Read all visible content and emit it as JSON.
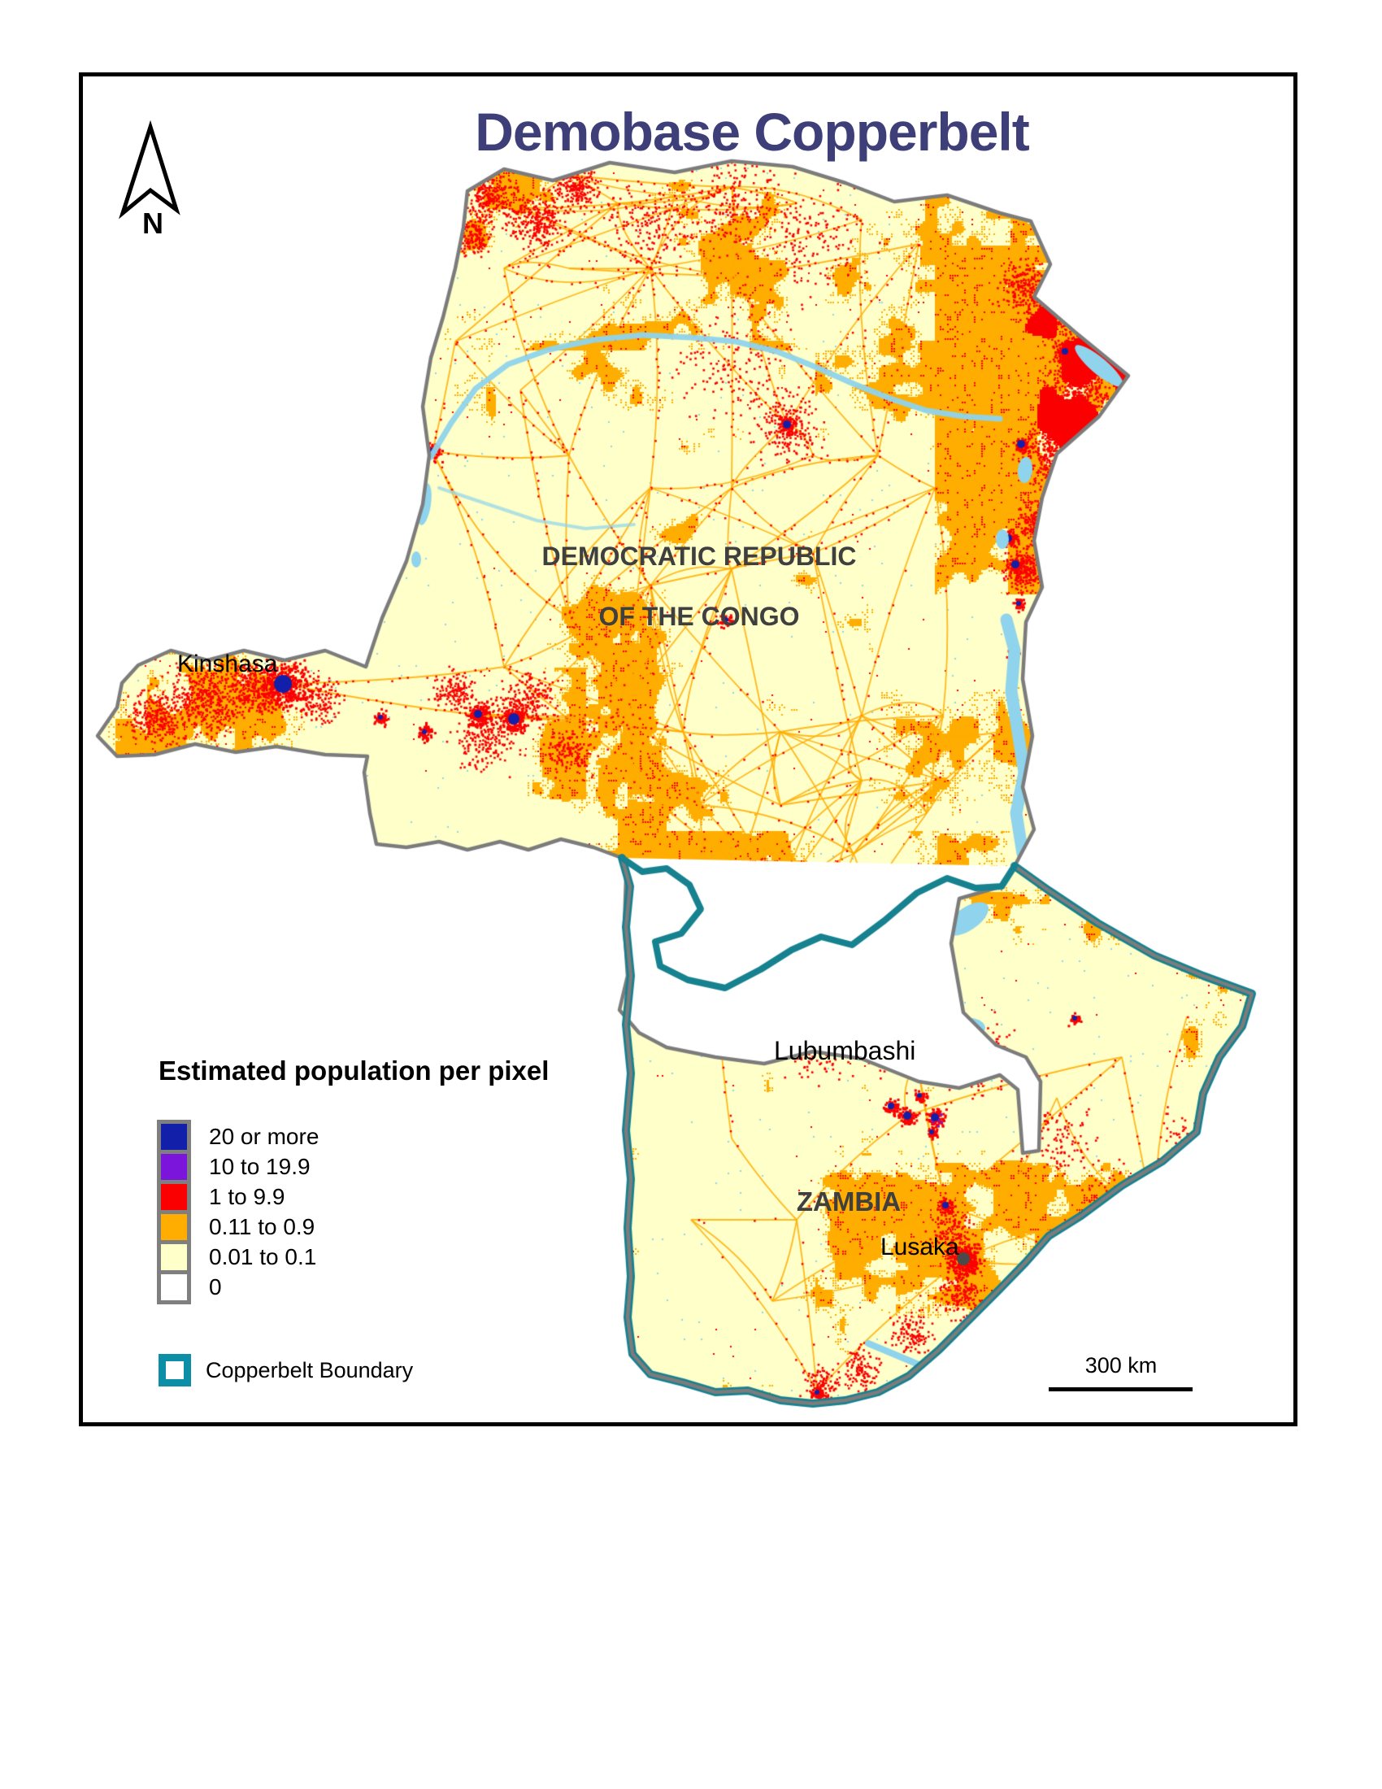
{
  "title": "Demobase Copperbelt",
  "north_arrow_label": "N",
  "map_labels": {
    "drc_line1": "DEMOCRATIC REPUBLIC",
    "drc_line2": "OF THE CONGO",
    "zambia": "ZAMBIA",
    "kinshasa": "Kinshasa",
    "lubumbashi": "Lubumbashi",
    "lusaka": "Lusaka"
  },
  "legend": {
    "title": "Estimated population per pixel",
    "classes": [
      {
        "label": "20 or more",
        "color": "#1220A9"
      },
      {
        "label": "10 to 19.9",
        "color": "#7B15DC"
      },
      {
        "label": "1 to 9.9",
        "color": "#FA0000"
      },
      {
        "label": "0.11 to 0.9",
        "color": "#FFAD00"
      },
      {
        "label": "0.01 to 0.1",
        "color": "#FEFFC9"
      },
      {
        "label": "0",
        "color": "#FFFFFF"
      }
    ],
    "boundary": {
      "label": "Copperbelt Boundary",
      "color": "#0C8EA6"
    }
  },
  "scale_bar": {
    "label": "300 km"
  },
  "colors": {
    "page_bg": "#FFFFFF",
    "frame": "#000000",
    "title_text": "#3E3E78",
    "country_label": "#3F3F3F",
    "city_label": "#000000",
    "land": "#FEFFC9",
    "class_orange": "#FFAD00",
    "class_red": "#FA0000",
    "class_blue": "#1220A9",
    "class_purple": "#7B15DC",
    "water": "#8FD4EC",
    "border_gray": "#7C7C7C",
    "copperbelt_line": "#16818F",
    "legend_swatch_border": "#7F7F7F",
    "boundary_swatch": "#0C8EA6",
    "lusaka_core": "#4A4A4A"
  }
}
